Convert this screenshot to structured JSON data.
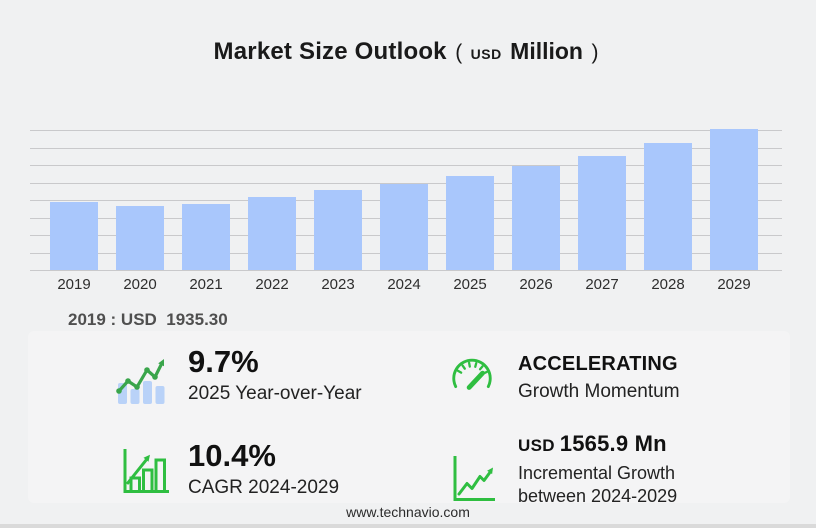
{
  "title": {
    "main": "Market Size Outlook",
    "paren_open": "(",
    "currency": "USD",
    "unit": "Million",
    "paren_close": ")"
  },
  "chart_data": {
    "type": "bar",
    "title": "Market Size Outlook (USD Million)",
    "xlabel": "",
    "ylabel": "USD Million",
    "categories": [
      "2019",
      "2020",
      "2021",
      "2022",
      "2023",
      "2024",
      "2025",
      "2026",
      "2027",
      "2028",
      "2029"
    ],
    "values": [
      1935.3,
      1820,
      1891,
      2078,
      2281,
      2447,
      2684.4,
      2960,
      3270,
      3630,
      4012.9
    ],
    "ylim": [
      0,
      4100
    ],
    "grid": true,
    "gridline_count": 9,
    "legend": "none",
    "y_tick_labels_visible": false
  },
  "annotation": {
    "base_year_value": "2019 : USD  1935.30"
  },
  "stats": {
    "yoy": {
      "icon": "bar-trend-icon",
      "value": "9.7%",
      "label": "2025 Year-over-Year"
    },
    "momentum": {
      "icon": "gauge-icon",
      "value": "ACCELERATING",
      "label": "Growth Momentum"
    },
    "cagr": {
      "icon": "growth-chart-icon",
      "value": "10.4%",
      "label": "CAGR 2024-2029"
    },
    "incremental": {
      "icon": "line-growth-icon",
      "currency": "USD",
      "value": "1565.9 Mn",
      "label_line1": "Incremental Growth",
      "label_line2": "between 2024-2029"
    }
  },
  "footer": {
    "website": "www.technavio.com"
  },
  "colors": {
    "background": "#f0f1f2",
    "panel": "#f4f4f5",
    "bar": "#a9c7fc",
    "gridline": "#c9c9cb",
    "accent_green": "#2fbe41",
    "trend_green": "#3aa54b",
    "icon_bar_blue": "#b9d2f8"
  }
}
